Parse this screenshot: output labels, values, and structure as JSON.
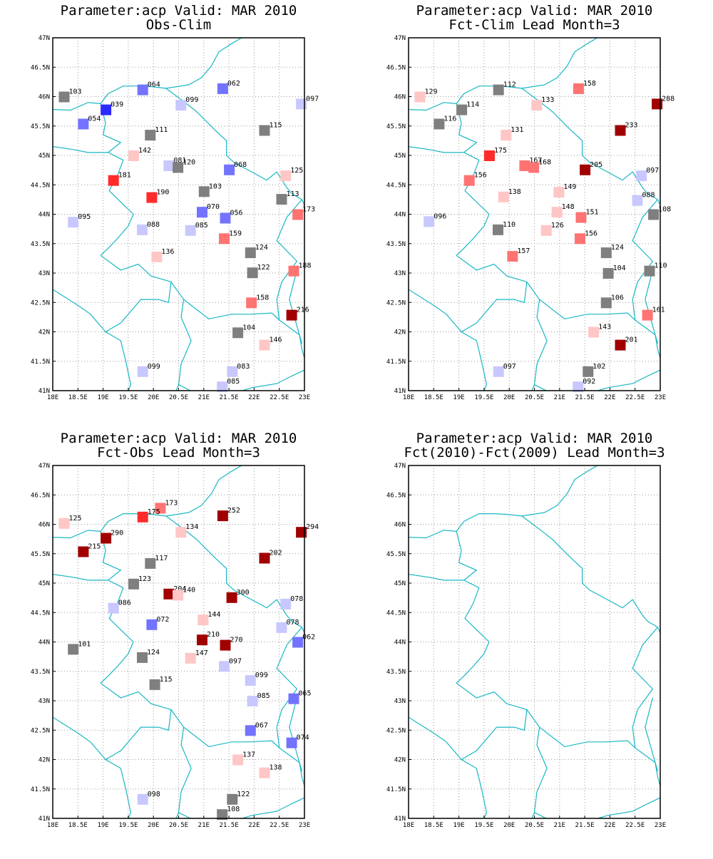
{
  "colors": {
    "coast": "#19b7c4",
    "grid": "#9a9a9a",
    "neutral": "#7f7f7f",
    "blue_strong": "#2b2bff",
    "blue_mid": "#7373ff",
    "blue_light": "#c8c8ff",
    "red_light": "#ffc6c6",
    "red_mid": "#ff7373",
    "red_strong": "#ff2b2b",
    "red_dark": "#a00000"
  },
  "axes": {
    "lon_ticks": [
      "18E",
      "18.5E",
      "19E",
      "19.5E",
      "20E",
      "20.5E",
      "21E",
      "21.5E",
      "22E",
      "22.5E",
      "23E"
    ],
    "lat_ticks": [
      "47N",
      "46.5N",
      "46N",
      "45.5N",
      "45N",
      "44.5N",
      "44N",
      "43.5N",
      "43N",
      "42.5N",
      "42N",
      "41.5N",
      "41N"
    ],
    "lon_range": [
      18,
      23
    ],
    "lat_range": [
      41,
      47
    ],
    "grid": "dotted"
  },
  "panels": [
    {
      "title1": "Parameter:acp Valid: MAR 2010",
      "title2": "Obs-Clim",
      "stations": [
        {
          "lon": 18.22,
          "lat": 46.0,
          "label": "103",
          "cls": "neutral"
        },
        {
          "lon": 19.78,
          "lat": 46.12,
          "label": "064",
          "cls": "blue_mid"
        },
        {
          "lon": 21.37,
          "lat": 46.14,
          "label": "062",
          "cls": "blue_mid"
        },
        {
          "lon": 22.93,
          "lat": 45.88,
          "label": "097",
          "cls": "blue_light"
        },
        {
          "lon": 19.05,
          "lat": 45.78,
          "label": "039",
          "cls": "blue_strong"
        },
        {
          "lon": 20.54,
          "lat": 45.86,
          "label": "099",
          "cls": "blue_light"
        },
        {
          "lon": 18.6,
          "lat": 45.54,
          "label": "054",
          "cls": "blue_mid"
        },
        {
          "lon": 19.93,
          "lat": 45.35,
          "label": "111",
          "cls": "neutral"
        },
        {
          "lon": 22.2,
          "lat": 45.43,
          "label": "115",
          "cls": "neutral"
        },
        {
          "lon": 19.6,
          "lat": 45.0,
          "label": "142",
          "cls": "red_light"
        },
        {
          "lon": 20.3,
          "lat": 44.83,
          "label": "081",
          "cls": "blue_light"
        },
        {
          "lon": 20.48,
          "lat": 44.8,
          "label": "120",
          "cls": "neutral"
        },
        {
          "lon": 21.5,
          "lat": 44.76,
          "label": "068",
          "cls": "blue_mid"
        },
        {
          "lon": 22.62,
          "lat": 44.66,
          "label": "125",
          "cls": "red_light"
        },
        {
          "lon": 19.2,
          "lat": 44.58,
          "label": "181",
          "cls": "red_strong"
        },
        {
          "lon": 19.96,
          "lat": 44.29,
          "label": "190",
          "cls": "red_strong"
        },
        {
          "lon": 21.0,
          "lat": 44.39,
          "label": "103",
          "cls": "neutral"
        },
        {
          "lon": 22.54,
          "lat": 44.26,
          "label": "113",
          "cls": "neutral"
        },
        {
          "lon": 20.96,
          "lat": 44.04,
          "label": "070",
          "cls": "blue_mid"
        },
        {
          "lon": 21.42,
          "lat": 43.94,
          "label": "056",
          "cls": "blue_mid"
        },
        {
          "lon": 22.86,
          "lat": 44.0,
          "label": "173",
          "cls": "red_mid"
        },
        {
          "lon": 18.4,
          "lat": 43.87,
          "label": "095",
          "cls": "blue_light"
        },
        {
          "lon": 19.77,
          "lat": 43.74,
          "label": "088",
          "cls": "blue_light"
        },
        {
          "lon": 20.73,
          "lat": 43.73,
          "label": "085",
          "cls": "blue_light"
        },
        {
          "lon": 21.4,
          "lat": 43.59,
          "label": "159",
          "cls": "red_mid"
        },
        {
          "lon": 21.92,
          "lat": 43.35,
          "label": "124",
          "cls": "neutral"
        },
        {
          "lon": 20.06,
          "lat": 43.28,
          "label": "136",
          "cls": "red_light"
        },
        {
          "lon": 21.96,
          "lat": 43.01,
          "label": "122",
          "cls": "neutral"
        },
        {
          "lon": 22.78,
          "lat": 43.04,
          "label": "188",
          "cls": "red_mid"
        },
        {
          "lon": 21.94,
          "lat": 42.5,
          "label": "158",
          "cls": "red_mid"
        },
        {
          "lon": 22.74,
          "lat": 42.29,
          "label": "216",
          "cls": "red_dark"
        },
        {
          "lon": 21.67,
          "lat": 41.99,
          "label": "104",
          "cls": "neutral"
        },
        {
          "lon": 22.2,
          "lat": 41.78,
          "label": "146",
          "cls": "red_light"
        },
        {
          "lon": 19.78,
          "lat": 41.33,
          "label": "099",
          "cls": "blue_light"
        },
        {
          "lon": 21.56,
          "lat": 41.33,
          "label": "083",
          "cls": "blue_light"
        },
        {
          "lon": 21.36,
          "lat": 41.07,
          "label": "085",
          "cls": "blue_light"
        }
      ]
    },
    {
      "title1": "Parameter:acp Valid: MAR 2010",
      "title2": "Fct-Clim Lead Month=3",
      "stations": [
        {
          "lon": 18.22,
          "lat": 46.0,
          "label": "129",
          "cls": "red_light"
        },
        {
          "lon": 19.78,
          "lat": 46.12,
          "label": "112",
          "cls": "neutral"
        },
        {
          "lon": 21.37,
          "lat": 46.14,
          "label": "158",
          "cls": "red_mid"
        },
        {
          "lon": 22.93,
          "lat": 45.88,
          "label": "288",
          "cls": "red_dark"
        },
        {
          "lon": 19.05,
          "lat": 45.78,
          "label": "114",
          "cls": "neutral"
        },
        {
          "lon": 20.54,
          "lat": 45.86,
          "label": "133",
          "cls": "red_light"
        },
        {
          "lon": 18.6,
          "lat": 45.54,
          "label": "116",
          "cls": "neutral"
        },
        {
          "lon": 19.93,
          "lat": 45.35,
          "label": "131",
          "cls": "red_light"
        },
        {
          "lon": 22.2,
          "lat": 45.43,
          "label": "233",
          "cls": "red_dark"
        },
        {
          "lon": 19.6,
          "lat": 45.0,
          "label": "175",
          "cls": "red_strong"
        },
        {
          "lon": 20.3,
          "lat": 44.83,
          "label": "167",
          "cls": "red_mid"
        },
        {
          "lon": 20.48,
          "lat": 44.8,
          "label": "168",
          "cls": "red_mid"
        },
        {
          "lon": 21.5,
          "lat": 44.76,
          "label": "205",
          "cls": "red_dark"
        },
        {
          "lon": 22.62,
          "lat": 44.66,
          "label": "097",
          "cls": "blue_light"
        },
        {
          "lon": 19.2,
          "lat": 44.58,
          "label": "156",
          "cls": "red_mid"
        },
        {
          "lon": 19.88,
          "lat": 44.3,
          "label": "138",
          "cls": "red_light"
        },
        {
          "lon": 20.98,
          "lat": 44.38,
          "label": "149",
          "cls": "red_light"
        },
        {
          "lon": 22.54,
          "lat": 44.24,
          "label": "088",
          "cls": "blue_light"
        },
        {
          "lon": 20.94,
          "lat": 44.04,
          "label": "148",
          "cls": "red_light"
        },
        {
          "lon": 21.42,
          "lat": 43.95,
          "label": "151",
          "cls": "red_mid"
        },
        {
          "lon": 22.86,
          "lat": 44.0,
          "label": "108",
          "cls": "neutral"
        },
        {
          "lon": 18.4,
          "lat": 43.88,
          "label": "096",
          "cls": "blue_light"
        },
        {
          "lon": 19.77,
          "lat": 43.74,
          "label": "110",
          "cls": "neutral"
        },
        {
          "lon": 20.73,
          "lat": 43.73,
          "label": "126",
          "cls": "red_light"
        },
        {
          "lon": 21.4,
          "lat": 43.59,
          "label": "156",
          "cls": "red_mid"
        },
        {
          "lon": 21.92,
          "lat": 43.35,
          "label": "124",
          "cls": "neutral"
        },
        {
          "lon": 20.06,
          "lat": 43.29,
          "label": "157",
          "cls": "red_mid"
        },
        {
          "lon": 21.96,
          "lat": 43.0,
          "label": "104",
          "cls": "neutral"
        },
        {
          "lon": 22.78,
          "lat": 43.04,
          "label": "110",
          "cls": "neutral"
        },
        {
          "lon": 21.92,
          "lat": 42.5,
          "label": "106",
          "cls": "neutral"
        },
        {
          "lon": 22.74,
          "lat": 42.29,
          "label": "161",
          "cls": "red_mid"
        },
        {
          "lon": 21.67,
          "lat": 42.0,
          "label": "143",
          "cls": "red_light"
        },
        {
          "lon": 22.2,
          "lat": 41.78,
          "label": "201",
          "cls": "red_dark"
        },
        {
          "lon": 19.78,
          "lat": 41.33,
          "label": "097",
          "cls": "blue_light"
        },
        {
          "lon": 21.56,
          "lat": 41.33,
          "label": "102",
          "cls": "neutral"
        },
        {
          "lon": 21.36,
          "lat": 41.07,
          "label": "092",
          "cls": "blue_light"
        }
      ]
    },
    {
      "title1": "Parameter:acp Valid: MAR 2010",
      "title2": "Fct-Obs Lead Month=3",
      "stations": [
        {
          "lon": 18.22,
          "lat": 46.02,
          "label": "125",
          "cls": "red_light"
        },
        {
          "lon": 20.13,
          "lat": 46.28,
          "label": "173",
          "cls": "red_mid"
        },
        {
          "lon": 19.78,
          "lat": 46.13,
          "label": "175",
          "cls": "red_strong"
        },
        {
          "lon": 21.37,
          "lat": 46.15,
          "label": "252",
          "cls": "red_dark"
        },
        {
          "lon": 22.93,
          "lat": 45.87,
          "label": "294",
          "cls": "red_dark"
        },
        {
          "lon": 19.05,
          "lat": 45.77,
          "label": "290",
          "cls": "red_dark"
        },
        {
          "lon": 20.54,
          "lat": 45.87,
          "label": "134",
          "cls": "red_light"
        },
        {
          "lon": 18.6,
          "lat": 45.54,
          "label": "215",
          "cls": "red_dark"
        },
        {
          "lon": 22.2,
          "lat": 45.43,
          "label": "202",
          "cls": "red_dark"
        },
        {
          "lon": 19.93,
          "lat": 45.34,
          "label": "117",
          "cls": "neutral"
        },
        {
          "lon": 19.6,
          "lat": 44.99,
          "label": "123",
          "cls": "neutral"
        },
        {
          "lon": 20.3,
          "lat": 44.82,
          "label": "204",
          "cls": "red_dark"
        },
        {
          "lon": 20.48,
          "lat": 44.8,
          "label": "140",
          "cls": "red_light"
        },
        {
          "lon": 21.55,
          "lat": 44.76,
          "label": "300",
          "cls": "red_dark"
        },
        {
          "lon": 22.62,
          "lat": 44.65,
          "label": "078",
          "cls": "blue_light"
        },
        {
          "lon": 19.2,
          "lat": 44.58,
          "label": "086",
          "cls": "blue_light"
        },
        {
          "lon": 20.98,
          "lat": 44.38,
          "label": "144",
          "cls": "red_light"
        },
        {
          "lon": 19.96,
          "lat": 44.3,
          "label": "072",
          "cls": "blue_mid"
        },
        {
          "lon": 22.54,
          "lat": 44.25,
          "label": "078",
          "cls": "blue_light"
        },
        {
          "lon": 20.96,
          "lat": 44.04,
          "label": "210",
          "cls": "red_dark"
        },
        {
          "lon": 21.42,
          "lat": 43.95,
          "label": "270",
          "cls": "red_dark"
        },
        {
          "lon": 22.86,
          "lat": 44.0,
          "label": "062",
          "cls": "blue_mid"
        },
        {
          "lon": 18.4,
          "lat": 43.88,
          "label": "101",
          "cls": "neutral"
        },
        {
          "lon": 19.77,
          "lat": 43.74,
          "label": "124",
          "cls": "neutral"
        },
        {
          "lon": 20.73,
          "lat": 43.73,
          "label": "147",
          "cls": "red_light"
        },
        {
          "lon": 21.4,
          "lat": 43.59,
          "label": "097",
          "cls": "blue_light"
        },
        {
          "lon": 21.92,
          "lat": 43.35,
          "label": "099",
          "cls": "blue_light"
        },
        {
          "lon": 20.02,
          "lat": 43.28,
          "label": "115",
          "cls": "neutral"
        },
        {
          "lon": 21.96,
          "lat": 43.0,
          "label": "085",
          "cls": "blue_light"
        },
        {
          "lon": 22.78,
          "lat": 43.04,
          "label": "065",
          "cls": "blue_mid"
        },
        {
          "lon": 21.92,
          "lat": 42.5,
          "label": "067",
          "cls": "blue_mid"
        },
        {
          "lon": 22.74,
          "lat": 42.29,
          "label": "074",
          "cls": "blue_mid"
        },
        {
          "lon": 21.67,
          "lat": 42.0,
          "label": "137",
          "cls": "red_light"
        },
        {
          "lon": 22.2,
          "lat": 41.78,
          "label": "138",
          "cls": "red_light"
        },
        {
          "lon": 19.78,
          "lat": 41.33,
          "label": "098",
          "cls": "blue_light"
        },
        {
          "lon": 21.56,
          "lat": 41.33,
          "label": "122",
          "cls": "neutral"
        },
        {
          "lon": 21.36,
          "lat": 41.07,
          "label": "108",
          "cls": "neutral"
        }
      ]
    },
    {
      "title1": "Parameter:acp Valid: MAR 2010",
      "title2": "Fct(2010)-Fct(2009) Lead Month=3",
      "stations": []
    }
  ]
}
